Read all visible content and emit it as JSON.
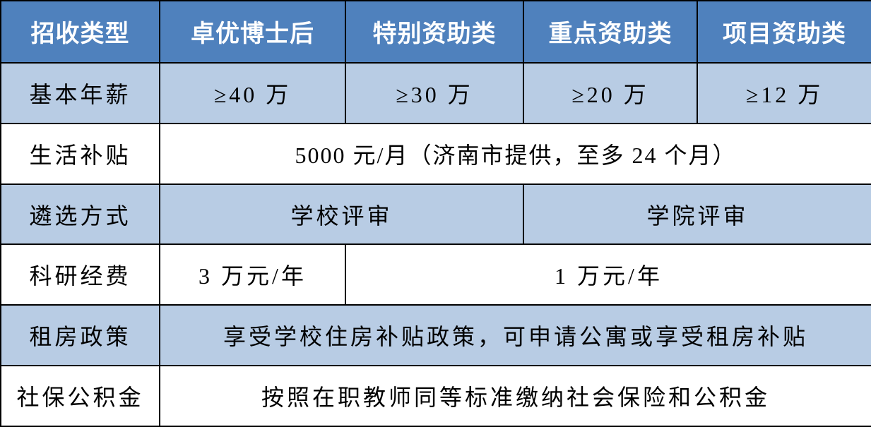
{
  "colors": {
    "header_bg": "#4F81BD",
    "band_bg": "#B8CCE4",
    "white_bg": "#FFFFFF"
  },
  "header": [
    "招收类型",
    "卓优博士后",
    "特别资助类",
    "重点资助类",
    "项目资助类"
  ],
  "rows": {
    "salary": {
      "label": "基本年薪",
      "values": [
        "≥40 万",
        "≥30 万",
        "≥20 万",
        "≥12 万"
      ]
    },
    "living": {
      "label": "生活补贴",
      "value": "5000 元/月（济南市提供，至多 24 个月）"
    },
    "selection": {
      "label": "遴选方式",
      "values": [
        "学校评审",
        "学院评审"
      ]
    },
    "research": {
      "label": "科研经费",
      "values": [
        "3 万元/年",
        "1 万元/年"
      ]
    },
    "housing": {
      "label": "租房政策",
      "value": "享受学校住房补贴政策，可申请公寓或享受租房补贴"
    },
    "insurance": {
      "label": "社保公积金",
      "value": "按照在职教师同等标准缴纳社会保险和公积金"
    }
  }
}
